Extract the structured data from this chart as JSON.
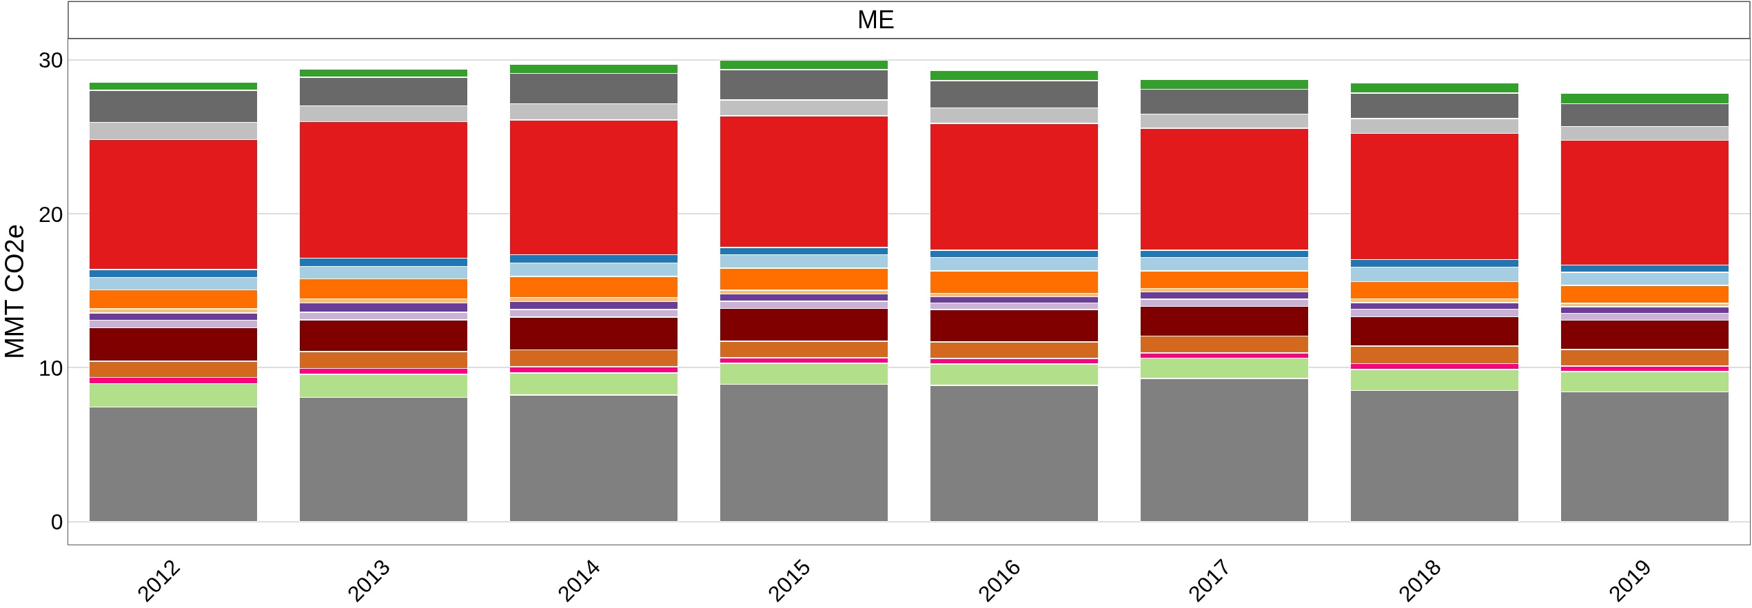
{
  "chart_data": {
    "type": "bar",
    "title": "ME",
    "ylabel": "MMT CO2e",
    "stacked": true,
    "categories": [
      "2012",
      "2013",
      "2014",
      "2015",
      "2016",
      "2017",
      "2018",
      "2019"
    ],
    "series": [
      {
        "color": "#808080",
        "values": [
          7.45,
          8.06,
          8.22,
          8.92,
          8.86,
          9.31,
          8.51,
          8.43
        ]
      },
      {
        "color": "#b2df8a",
        "values": [
          1.51,
          1.51,
          1.45,
          1.37,
          1.38,
          1.32,
          1.37,
          1.33
        ]
      },
      {
        "color": "#ff0080",
        "values": [
          0.41,
          0.39,
          0.39,
          0.36,
          0.37,
          0.33,
          0.39,
          0.34
        ]
      },
      {
        "color": "#d2691e",
        "values": [
          1.06,
          1.08,
          1.1,
          1.08,
          1.06,
          1.1,
          1.14,
          1.08
        ]
      },
      {
        "color": "#800000",
        "values": [
          2.16,
          2.08,
          2.13,
          2.13,
          2.11,
          1.92,
          1.9,
          1.9
        ]
      },
      {
        "color": "#cab2d6",
        "values": [
          0.49,
          0.49,
          0.49,
          0.47,
          0.44,
          0.47,
          0.49,
          0.45
        ]
      },
      {
        "color": "#6a3d9a",
        "values": [
          0.49,
          0.59,
          0.53,
          0.47,
          0.39,
          0.47,
          0.44,
          0.43
        ]
      },
      {
        "color": "#fdbf6f",
        "values": [
          0.27,
          0.27,
          0.26,
          0.24,
          0.23,
          0.24,
          0.23,
          0.22
        ]
      },
      {
        "color": "#ff6f00",
        "values": [
          1.22,
          1.31,
          1.37,
          1.43,
          1.45,
          1.13,
          1.12,
          1.17
        ]
      },
      {
        "color": "#a6cee3",
        "values": [
          0.82,
          0.81,
          0.86,
          0.88,
          0.87,
          0.87,
          0.96,
          0.85
        ]
      },
      {
        "color": "#1f78b4",
        "values": [
          0.51,
          0.53,
          0.55,
          0.47,
          0.47,
          0.47,
          0.49,
          0.47
        ]
      },
      {
        "color": "#e31a1c",
        "values": [
          8.45,
          8.88,
          8.75,
          8.57,
          8.25,
          7.94,
          8.2,
          8.13
        ]
      },
      {
        "color": "#c0c0c0",
        "values": [
          1.12,
          1.02,
          1.06,
          1.02,
          1.02,
          0.92,
          0.96,
          0.89
        ]
      },
      {
        "color": "#696969",
        "values": [
          2.08,
          1.88,
          1.98,
          1.98,
          1.77,
          1.61,
          1.66,
          1.47
        ]
      },
      {
        "color": "#33a02c",
        "values": [
          0.53,
          0.53,
          0.57,
          0.59,
          0.64,
          0.63,
          0.67,
          0.68
        ]
      }
    ],
    "ylim": [
      -1.5,
      31.4
    ],
    "yticks": [
      0,
      10,
      20,
      30
    ],
    "grid": "y"
  }
}
